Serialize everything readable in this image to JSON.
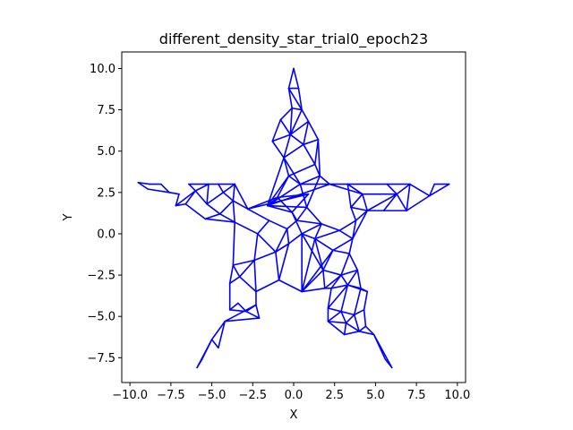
{
  "chart_data": {
    "type": "line",
    "title": "different_density_star_trial0_epoch23",
    "xlabel": "X",
    "ylabel": "Y",
    "xlim": [
      -10.5,
      10.5
    ],
    "ylim": [
      -9.0,
      11.0
    ],
    "xticks": [
      -10.0,
      -7.5,
      -5.0,
      -2.5,
      0.0,
      2.5,
      5.0,
      7.5,
      10.0
    ],
    "xtick_labels": [
      "−10.0",
      "−7.5",
      "−5.0",
      "−2.5",
      "0.0",
      "2.5",
      "5.0",
      "7.5",
      "10.0"
    ],
    "yticks": [
      -7.5,
      -5.0,
      -2.5,
      0.0,
      2.5,
      5.0,
      7.5,
      10.0
    ],
    "ytick_labels": [
      "−7.5",
      "−5.0",
      "−2.5",
      "0.0",
      "2.5",
      "5.0",
      "7.5",
      "10.0"
    ],
    "grid": false,
    "line_color": "#0000ff",
    "vertices": [
      [
        0.0,
        10.0
      ],
      [
        -0.3,
        8.8
      ],
      [
        0.3,
        8.8
      ],
      [
        -0.1,
        7.6
      ],
      [
        0.5,
        7.5
      ],
      [
        -0.8,
        6.9
      ],
      [
        0.9,
        6.8
      ],
      [
        -1.3,
        5.6
      ],
      [
        1.5,
        5.7
      ],
      [
        -0.2,
        6.0
      ],
      [
        0.6,
        5.4
      ],
      [
        -0.6,
        4.6
      ],
      [
        1.3,
        4.2
      ],
      [
        -0.3,
        3.5
      ],
      [
        1.6,
        3.5
      ],
      [
        0.4,
        3.0
      ],
      [
        2.2,
        3.0
      ],
      [
        3.3,
        3.0
      ],
      [
        5.7,
        3.0
      ],
      [
        7.1,
        3.0
      ],
      [
        8.6,
        3.0
      ],
      [
        9.5,
        3.0
      ],
      [
        4.2,
        2.4
      ],
      [
        6.3,
        2.4
      ],
      [
        8.3,
        2.3
      ],
      [
        3.5,
        1.6
      ],
      [
        4.5,
        1.4
      ],
      [
        5.5,
        1.4
      ],
      [
        6.9,
        1.4
      ],
      [
        3.8,
        0.8
      ],
      [
        2.8,
        0.2
      ],
      [
        1.7,
        0.6
      ],
      [
        0.8,
        1.6
      ],
      [
        1.3,
        -0.3
      ],
      [
        3.6,
        -0.3
      ],
      [
        2.4,
        -1.0
      ],
      [
        3.4,
        -1.2
      ],
      [
        1.8,
        -2.2
      ],
      [
        2.9,
        -2.5
      ],
      [
        3.9,
        -2.2
      ],
      [
        1.9,
        -3.3
      ],
      [
        2.3,
        -3.3
      ],
      [
        3.3,
        -3.1
      ],
      [
        4.1,
        -3.3
      ],
      [
        4.5,
        -3.5
      ],
      [
        2.1,
        -4.5
      ],
      [
        2.9,
        -4.7
      ],
      [
        3.7,
        -4.9
      ],
      [
        4.3,
        -4.6
      ],
      [
        2.1,
        -5.3
      ],
      [
        3.2,
        -5.4
      ],
      [
        4.4,
        -5.6
      ],
      [
        3.1,
        -6.1
      ],
      [
        4.0,
        -5.9
      ],
      [
        4.9,
        -6.1
      ],
      [
        5.6,
        -7.6
      ],
      [
        6.0,
        -8.1
      ],
      [
        0.5,
        -3.5
      ],
      [
        -0.9,
        -2.8
      ],
      [
        -2.3,
        -3.5
      ],
      [
        -3.3,
        -2.6
      ],
      [
        -3.9,
        -3.0
      ],
      [
        -3.9,
        -4.6
      ],
      [
        -2.9,
        -4.7
      ],
      [
        -2.3,
        -4.3
      ],
      [
        -2.1,
        -5.1
      ],
      [
        -3.4,
        -4.2
      ],
      [
        -4.2,
        -5.3
      ],
      [
        -4.6,
        -6.9
      ],
      [
        -5.0,
        -6.4
      ],
      [
        -5.6,
        -7.6
      ],
      [
        -5.9,
        -8.1
      ],
      [
        -3.7,
        -1.9
      ],
      [
        -2.4,
        -1.6
      ],
      [
        -1.1,
        -1.1
      ],
      [
        -2.2,
        0.0
      ],
      [
        -3.6,
        0.7
      ],
      [
        -1.5,
        0.8
      ],
      [
        -0.4,
        0.3
      ],
      [
        -5.4,
        0.9
      ],
      [
        -4.5,
        1.2
      ],
      [
        -5.3,
        1.8
      ],
      [
        -4.3,
        2.5
      ],
      [
        -3.7,
        2.0
      ],
      [
        -3.6,
        3.0
      ],
      [
        -4.6,
        3.0
      ],
      [
        -5.2,
        3.0
      ],
      [
        -6.4,
        3.0
      ],
      [
        -6.0,
        2.6
      ],
      [
        -7.2,
        1.7
      ],
      [
        -7.0,
        2.4
      ],
      [
        -7.6,
        2.5
      ],
      [
        -8.1,
        3.0
      ],
      [
        -8.8,
        3.0
      ],
      [
        -9.5,
        3.1
      ],
      [
        -8.9,
        2.7
      ],
      [
        -6.6,
        1.8
      ],
      [
        -2.8,
        1.5
      ],
      [
        -1.0,
        2.2
      ],
      [
        -0.1,
        1.3
      ],
      [
        0.5,
        0.0
      ],
      [
        -0.3,
        -0.6
      ],
      [
        0.2,
        0.8
      ],
      [
        -1.6,
        1.7
      ],
      [
        0.9,
        2.4
      ]
    ],
    "edges": [
      [
        0,
        1
      ],
      [
        0,
        2
      ],
      [
        1,
        2
      ],
      [
        1,
        3
      ],
      [
        2,
        4
      ],
      [
        3,
        4
      ],
      [
        1,
        4
      ],
      [
        3,
        5
      ],
      [
        4,
        6
      ],
      [
        5,
        9
      ],
      [
        3,
        9
      ],
      [
        9,
        4
      ],
      [
        9,
        6
      ],
      [
        5,
        7
      ],
      [
        7,
        9
      ],
      [
        6,
        8
      ],
      [
        6,
        10
      ],
      [
        9,
        10
      ],
      [
        8,
        10
      ],
      [
        7,
        11
      ],
      [
        9,
        11
      ],
      [
        10,
        11
      ],
      [
        10,
        12
      ],
      [
        8,
        12
      ],
      [
        11,
        13
      ],
      [
        12,
        13
      ],
      [
        12,
        14
      ],
      [
        8,
        14
      ],
      [
        13,
        15
      ],
      [
        14,
        15
      ],
      [
        15,
        16
      ],
      [
        14,
        16
      ],
      [
        11,
        15
      ],
      [
        13,
        103
      ],
      [
        15,
        103
      ],
      [
        16,
        103
      ],
      [
        16,
        22
      ],
      [
        16,
        17
      ],
      [
        17,
        22
      ],
      [
        17,
        18
      ],
      [
        22,
        23
      ],
      [
        18,
        23
      ],
      [
        17,
        25
      ],
      [
        22,
        25
      ],
      [
        22,
        26
      ],
      [
        23,
        26
      ],
      [
        23,
        27
      ],
      [
        26,
        27
      ],
      [
        23,
        28
      ],
      [
        18,
        19
      ],
      [
        19,
        23
      ],
      [
        19,
        28
      ],
      [
        19,
        24
      ],
      [
        20,
        24
      ],
      [
        20,
        21
      ],
      [
        21,
        24
      ],
      [
        24,
        28
      ],
      [
        27,
        28
      ],
      [
        25,
        26
      ],
      [
        25,
        29
      ],
      [
        26,
        29
      ],
      [
        26,
        34
      ],
      [
        29,
        34
      ],
      [
        29,
        30
      ],
      [
        30,
        31
      ],
      [
        31,
        32
      ],
      [
        32,
        103
      ],
      [
        15,
        32
      ],
      [
        14,
        32
      ],
      [
        31,
        33
      ],
      [
        30,
        33
      ],
      [
        30,
        34
      ],
      [
        33,
        35
      ],
      [
        34,
        35
      ],
      [
        34,
        36
      ],
      [
        35,
        36
      ],
      [
        33,
        37
      ],
      [
        35,
        37
      ],
      [
        36,
        38
      ],
      [
        37,
        38
      ],
      [
        36,
        39
      ],
      [
        38,
        39
      ],
      [
        37,
        40
      ],
      [
        38,
        40
      ],
      [
        40,
        41
      ],
      [
        38,
        41
      ],
      [
        38,
        42
      ],
      [
        41,
        42
      ],
      [
        39,
        42
      ],
      [
        42,
        43
      ],
      [
        39,
        43
      ],
      [
        43,
        44
      ],
      [
        42,
        44
      ],
      [
        41,
        45
      ],
      [
        42,
        45
      ],
      [
        45,
        46
      ],
      [
        42,
        46
      ],
      [
        46,
        47
      ],
      [
        43,
        47
      ],
      [
        47,
        48
      ],
      [
        44,
        48
      ],
      [
        45,
        49
      ],
      [
        46,
        49
      ],
      [
        49,
        50
      ],
      [
        46,
        50
      ],
      [
        47,
        50
      ],
      [
        50,
        52
      ],
      [
        49,
        52
      ],
      [
        50,
        53
      ],
      [
        47,
        53
      ],
      [
        52,
        53
      ],
      [
        53,
        51
      ],
      [
        48,
        51
      ],
      [
        51,
        54
      ],
      [
        53,
        54
      ],
      [
        54,
        55
      ],
      [
        55,
        56
      ],
      [
        54,
        56
      ],
      [
        40,
        57
      ],
      [
        37,
        57
      ],
      [
        57,
        58
      ],
      [
        58,
        59
      ],
      [
        59,
        60
      ],
      [
        60,
        61
      ],
      [
        61,
        62
      ],
      [
        62,
        63
      ],
      [
        63,
        64
      ],
      [
        59,
        64
      ],
      [
        62,
        66
      ],
      [
        63,
        66
      ],
      [
        64,
        65
      ],
      [
        63,
        65
      ],
      [
        65,
        67
      ],
      [
        67,
        68
      ],
      [
        68,
        69
      ],
      [
        69,
        70
      ],
      [
        70,
        71
      ],
      [
        71,
        69
      ],
      [
        67,
        69
      ],
      [
        64,
        67
      ],
      [
        60,
        72
      ],
      [
        61,
        72
      ],
      [
        72,
        73
      ],
      [
        60,
        73
      ],
      [
        73,
        74
      ],
      [
        58,
        74
      ],
      [
        59,
        73
      ],
      [
        74,
        75
      ],
      [
        73,
        75
      ],
      [
        75,
        76
      ],
      [
        72,
        76
      ],
      [
        75,
        77
      ],
      [
        77,
        78
      ],
      [
        74,
        78
      ],
      [
        76,
        79
      ],
      [
        79,
        80
      ],
      [
        76,
        80
      ],
      [
        80,
        81
      ],
      [
        81,
        82
      ],
      [
        82,
        83
      ],
      [
        80,
        83
      ],
      [
        83,
        84
      ],
      [
        82,
        84
      ],
      [
        84,
        85
      ],
      [
        82,
        85
      ],
      [
        85,
        86
      ],
      [
        81,
        86
      ],
      [
        86,
        87
      ],
      [
        87,
        88
      ],
      [
        88,
        86
      ],
      [
        88,
        89
      ],
      [
        89,
        90
      ],
      [
        90,
        91
      ],
      [
        91,
        92
      ],
      [
        92,
        93
      ],
      [
        93,
        94
      ],
      [
        94,
        95
      ],
      [
        95,
        91
      ],
      [
        89,
        96
      ],
      [
        88,
        96
      ],
      [
        79,
        96
      ],
      [
        81,
        88
      ],
      [
        76,
        83
      ],
      [
        83,
        97
      ],
      [
        77,
        97
      ],
      [
        84,
        97
      ],
      [
        97,
        98
      ],
      [
        98,
        99
      ],
      [
        99,
        100
      ],
      [
        100,
        33
      ],
      [
        100,
        101
      ],
      [
        101,
        74
      ],
      [
        99,
        102
      ],
      [
        102,
        32
      ],
      [
        99,
        103
      ],
      [
        98,
        103
      ],
      [
        97,
        104
      ],
      [
        104,
        98
      ],
      [
        104,
        99
      ],
      [
        78,
        102
      ],
      [
        78,
        101
      ],
      [
        100,
        57
      ],
      [
        101,
        58
      ],
      [
        33,
        57
      ],
      [
        35,
        57
      ],
      [
        31,
        100
      ],
      [
        102,
        31
      ],
      [
        100,
        37
      ],
      [
        74,
        101
      ],
      [
        11,
        103
      ],
      [
        13,
        98
      ]
    ]
  }
}
